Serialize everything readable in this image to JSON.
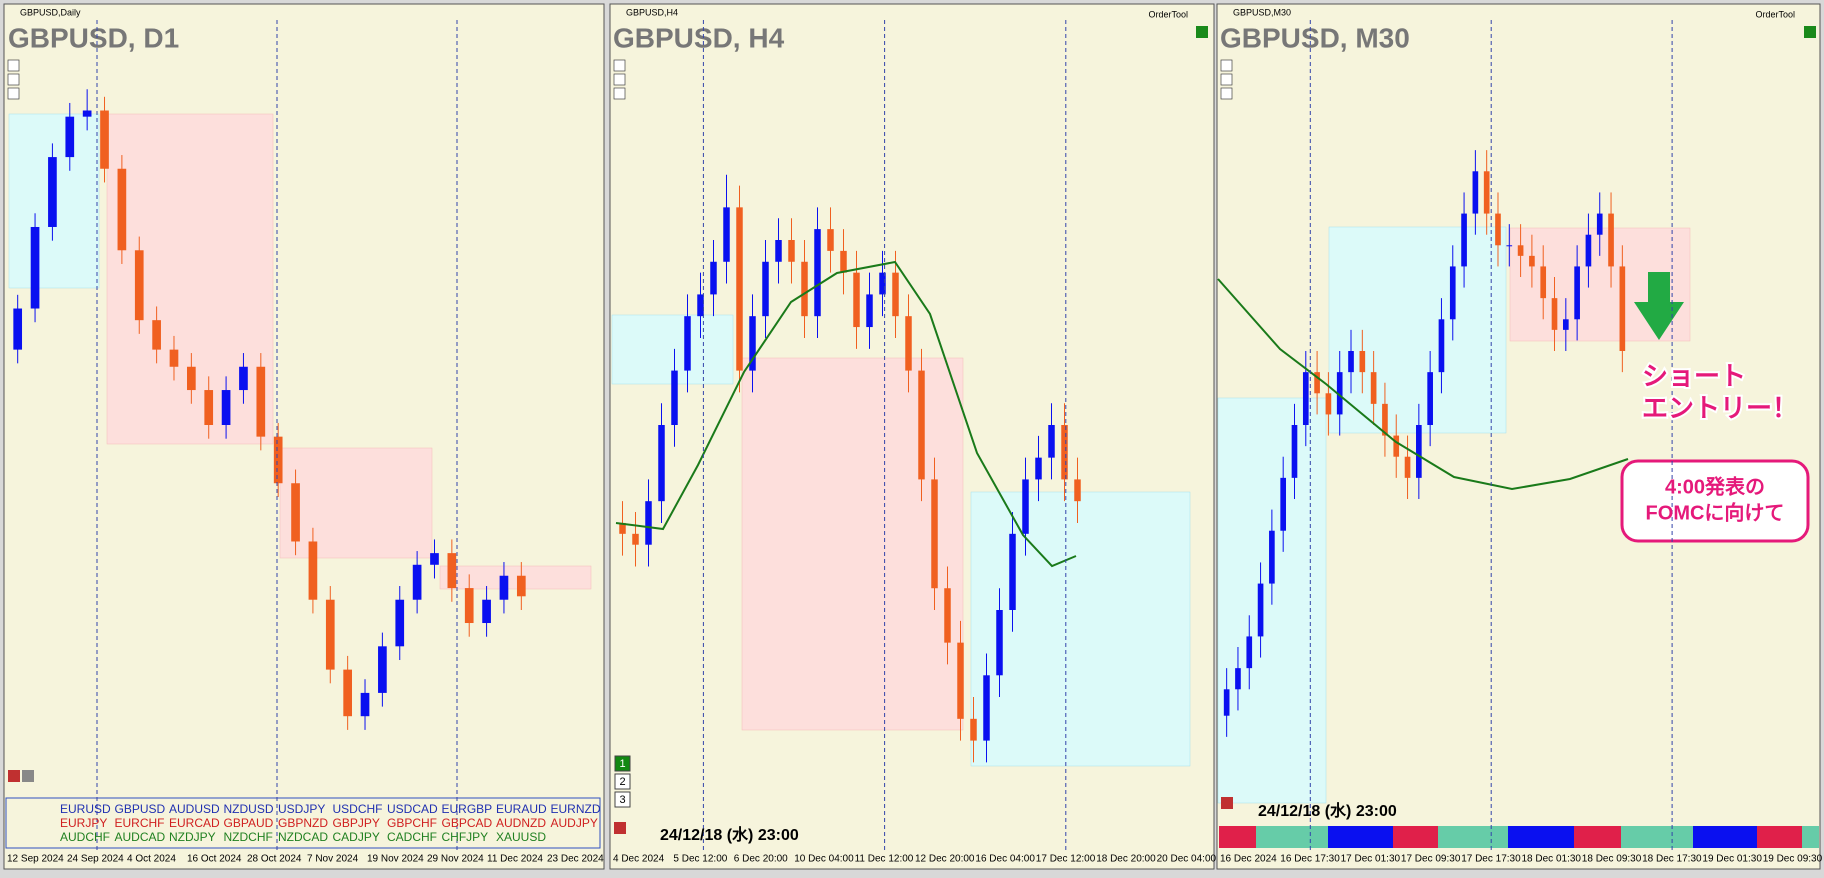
{
  "panels": [
    {
      "header": "GBPUSD,Daily",
      "title": "GBPUSD, D1",
      "ylim": [
        1.24,
        1.348
      ],
      "candles": [
        [
          1.305,
          1.313,
          1.303,
          1.311
        ],
        [
          1.311,
          1.3249,
          1.309,
          1.3229
        ],
        [
          1.3229,
          1.3351,
          1.3209,
          1.3331
        ],
        [
          1.3331,
          1.341,
          1.3311,
          1.339
        ],
        [
          1.339,
          1.343,
          1.337,
          1.3399
        ],
        [
          1.3399,
          1.3419,
          1.3294,
          1.3314
        ],
        [
          1.3314,
          1.3334,
          1.3175,
          1.3195
        ],
        [
          1.3195,
          1.3215,
          1.3073,
          1.3093
        ],
        [
          1.3093,
          1.3113,
          1.303,
          1.305
        ],
        [
          1.305,
          1.307,
          1.3005,
          1.3025
        ],
        [
          1.3025,
          1.3045,
          1.2971,
          1.2991
        ],
        [
          1.2991,
          1.3011,
          1.292,
          1.294
        ],
        [
          1.294,
          1.3011,
          1.292,
          1.2991
        ],
        [
          1.2991,
          1.3045,
          1.2971,
          1.3025
        ],
        [
          1.3025,
          1.3045,
          1.2903,
          1.2923
        ],
        [
          1.2923,
          1.2943,
          1.2835,
          1.2855
        ],
        [
          1.2855,
          1.2875,
          1.275,
          1.277
        ],
        [
          1.277,
          1.279,
          1.2665,
          1.2685
        ],
        [
          1.2685,
          1.2705,
          1.2563,
          1.2583
        ],
        [
          1.2583,
          1.2603,
          1.2495,
          1.2515
        ],
        [
          1.2515,
          1.2569,
          1.2495,
          1.2549
        ],
        [
          1.2549,
          1.2637,
          1.2529,
          1.2617
        ],
        [
          1.2617,
          1.2705,
          1.2597,
          1.2685
        ],
        [
          1.2685,
          1.2756,
          1.2665,
          1.2736
        ],
        [
          1.2736,
          1.2773,
          1.2716,
          1.2753
        ],
        [
          1.2753,
          1.2773,
          1.2682,
          1.2702
        ],
        [
          1.2702,
          1.2722,
          1.2631,
          1.2651
        ],
        [
          1.2651,
          1.2705,
          1.2631,
          1.2685
        ],
        [
          1.2685,
          1.274,
          1.2665,
          1.272
        ],
        [
          1.272,
          1.274,
          1.267,
          1.269
        ]
      ],
      "xlabels": [
        "12 Sep 2024",
        "24 Sep 2024",
        "4 Oct 2024",
        "16 Oct 2024",
        "28 Oct 2024",
        "7 Nov 2024",
        "19 Nov 2024",
        "29 Nov 2024",
        "11 Dec 2024",
        "23 Dec 2024"
      ]
    },
    {
      "header": "GBPUSD,H4",
      "title": "GBPUSD, H4",
      "tool": "OrderTool",
      "ylim": [
        1.248,
        1.282
      ],
      "candles": [
        [
          1.2605,
          1.2615,
          1.259,
          1.26
        ],
        [
          1.26,
          1.261,
          1.2585,
          1.2595
        ],
        [
          1.2595,
          1.2625,
          1.2585,
          1.2615
        ],
        [
          1.2615,
          1.266,
          1.2605,
          1.265
        ],
        [
          1.265,
          1.2685,
          1.264,
          1.2675
        ],
        [
          1.2675,
          1.271,
          1.2665,
          1.27
        ],
        [
          1.27,
          1.272,
          1.269,
          1.271
        ],
        [
          1.271,
          1.2735,
          1.27,
          1.2725
        ],
        [
          1.2725,
          1.2765,
          1.2715,
          1.275
        ],
        [
          1.275,
          1.276,
          1.2665,
          1.2675
        ],
        [
          1.2675,
          1.271,
          1.2665,
          1.27
        ],
        [
          1.27,
          1.2735,
          1.269,
          1.2725
        ],
        [
          1.2725,
          1.2745,
          1.2715,
          1.2735
        ],
        [
          1.2735,
          1.2745,
          1.2715,
          1.2725
        ],
        [
          1.2725,
          1.2735,
          1.269,
          1.27
        ],
        [
          1.27,
          1.275,
          1.269,
          1.274
        ],
        [
          1.274,
          1.275,
          1.272,
          1.273
        ],
        [
          1.273,
          1.274,
          1.271,
          1.272
        ],
        [
          1.272,
          1.273,
          1.2685,
          1.2695
        ],
        [
          1.2695,
          1.272,
          1.2685,
          1.271
        ],
        [
          1.271,
          1.273,
          1.27,
          1.272
        ],
        [
          1.272,
          1.273,
          1.269,
          1.27
        ],
        [
          1.27,
          1.271,
          1.2665,
          1.2675
        ],
        [
          1.2675,
          1.2685,
          1.2615,
          1.2625
        ],
        [
          1.2625,
          1.2635,
          1.2565,
          1.2575
        ],
        [
          1.2575,
          1.2585,
          1.254,
          1.255
        ],
        [
          1.255,
          1.256,
          1.2505,
          1.2515
        ],
        [
          1.2515,
          1.2525,
          1.2495,
          1.2505
        ],
        [
          1.2505,
          1.2545,
          1.2495,
          1.2535
        ],
        [
          1.2535,
          1.2575,
          1.2525,
          1.2565
        ],
        [
          1.2565,
          1.261,
          1.2555,
          1.26
        ],
        [
          1.26,
          1.2635,
          1.259,
          1.2625
        ],
        [
          1.2625,
          1.2645,
          1.2615,
          1.2635
        ],
        [
          1.2635,
          1.266,
          1.2625,
          1.265
        ],
        [
          1.265,
          1.266,
          1.2615,
          1.2625
        ],
        [
          1.2625,
          1.2635,
          1.2605,
          1.2615
        ]
      ],
      "xlabels": [
        "4 Dec 2024",
        "5 Dec 12:00",
        "6 Dec 20:00",
        "10 Dec 04:00",
        "11 Dec 12:00",
        "12 Dec 20:00",
        "16 Dec 04:00",
        "17 Dec 12:00",
        "18 Dec 20:00",
        "20 Dec 04:00"
      ],
      "stamp": "24/12/18 (水) 23:00",
      "buttons": [
        "1",
        "2",
        "3"
      ]
    },
    {
      "header": "GBPUSD,M30",
      "title": "GBPUSD, M30",
      "tool": "OrderTool",
      "ylim": [
        1.244,
        1.272
      ],
      "candles": [
        [
          1.247,
          1.2488,
          1.2462,
          1.248
        ],
        [
          1.248,
          1.2496,
          1.2472,
          1.2488
        ],
        [
          1.2488,
          1.2508,
          1.248,
          1.25
        ],
        [
          1.25,
          1.2528,
          1.2492,
          1.252
        ],
        [
          1.252,
          1.2548,
          1.2512,
          1.254
        ],
        [
          1.254,
          1.2568,
          1.2532,
          1.256
        ],
        [
          1.256,
          1.2588,
          1.2552,
          1.258
        ],
        [
          1.258,
          1.2608,
          1.2572,
          1.26
        ],
        [
          1.26,
          1.2608,
          1.2584,
          1.2592
        ],
        [
          1.2592,
          1.26,
          1.2576,
          1.2584
        ],
        [
          1.2584,
          1.2608,
          1.2576,
          1.26
        ],
        [
          1.26,
          1.2616,
          1.2592,
          1.2608
        ],
        [
          1.2608,
          1.2616,
          1.2592,
          1.26
        ],
        [
          1.26,
          1.2608,
          1.258,
          1.2588
        ],
        [
          1.2588,
          1.2596,
          1.2568,
          1.2576
        ],
        [
          1.2576,
          1.2584,
          1.256,
          1.2568
        ],
        [
          1.2568,
          1.2576,
          1.2552,
          1.256
        ],
        [
          1.256,
          1.2588,
          1.2552,
          1.258
        ],
        [
          1.258,
          1.2608,
          1.2572,
          1.26
        ],
        [
          1.26,
          1.2628,
          1.2592,
          1.262
        ],
        [
          1.262,
          1.2648,
          1.2612,
          1.264
        ],
        [
          1.264,
          1.2668,
          1.2632,
          1.266
        ],
        [
          1.266,
          1.2684,
          1.2652,
          1.2676
        ],
        [
          1.2676,
          1.2684,
          1.2652,
          1.266
        ],
        [
          1.266,
          1.2668,
          1.264,
          1.2648
        ],
        [
          1.2648,
          1.2656,
          1.264,
          1.2648
        ],
        [
          1.2648,
          1.2656,
          1.2636,
          1.2644
        ],
        [
          1.2644,
          1.2652,
          1.2632,
          1.264
        ],
        [
          1.264,
          1.2648,
          1.262,
          1.2628
        ],
        [
          1.2628,
          1.2636,
          1.2608,
          1.2616
        ],
        [
          1.2616,
          1.2628,
          1.2608,
          1.262
        ],
        [
          1.262,
          1.2648,
          1.2612,
          1.264
        ],
        [
          1.264,
          1.266,
          1.2632,
          1.2652
        ],
        [
          1.2652,
          1.2668,
          1.2644,
          1.266
        ],
        [
          1.266,
          1.2668,
          1.2632,
          1.264
        ],
        [
          1.264,
          1.2648,
          1.26,
          1.2608
        ]
      ],
      "xlabels": [
        "16 Dec 2024",
        "16 Dec 17:30",
        "17 Dec 01:30",
        "17 Dec 09:30",
        "17 Dec 17:30",
        "18 Dec 01:30",
        "18 Dec 09:30",
        "18 Dec 17:30",
        "19 Dec 01:30",
        "19 Dec 09:30"
      ],
      "stamp": "24/12/18 (水) 23:00",
      "annotations": [
        "ショート",
        "エントリー！",
        "4:00発表の",
        "FOMCに向けて"
      ]
    }
  ],
  "symbols": [
    [
      "EURUSD",
      "GBPUSD",
      "AUDUSD",
      "NZDUSD",
      "USDJPY",
      "USDCHF",
      "USDCAD",
      "EURGBP",
      "EURAUD",
      "EURNZD"
    ],
    [
      "EURJPY",
      "EURCHF",
      "EURCAD",
      "GBPAUD",
      "GBPNZD",
      "GBPJPY",
      "GBPCHF",
      "GBPCAD",
      "AUDNZD",
      "AUDJPY"
    ],
    [
      "AUDCHF",
      "AUDCAD",
      "NZDJPY",
      "NZDCHF",
      "NZDCAD",
      "CADJPY",
      "CADCHF",
      "CHFJPY",
      "XAUUSD"
    ]
  ]
}
